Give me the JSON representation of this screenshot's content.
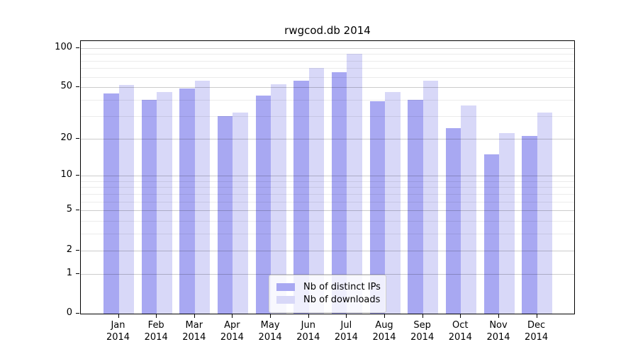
{
  "chart_data": {
    "type": "bar",
    "title": "rwgcod.db 2014",
    "xlabel": "",
    "ylabel": "",
    "scale": "symlog ln(1+x)",
    "ylim": [
      0,
      113
    ],
    "grid": "major and minor horizontal gridlines drawn over bars",
    "legend_position": "lower center inside plot",
    "categories": [
      {
        "month": "Jan",
        "year": "2014"
      },
      {
        "month": "Feb",
        "year": "2014"
      },
      {
        "month": "Mar",
        "year": "2014"
      },
      {
        "month": "Apr",
        "year": "2014"
      },
      {
        "month": "May",
        "year": "2014"
      },
      {
        "month": "Jun",
        "year": "2014"
      },
      {
        "month": "Jul",
        "year": "2014"
      },
      {
        "month": "Aug",
        "year": "2014"
      },
      {
        "month": "Sep",
        "year": "2014"
      },
      {
        "month": "Oct",
        "year": "2014"
      },
      {
        "month": "Nov",
        "year": "2014"
      },
      {
        "month": "Dec",
        "year": "2014"
      }
    ],
    "series": [
      {
        "name": "Nb of distinct IPs",
        "color": "#a8a8f2",
        "values": [
          45,
          40,
          49,
          30,
          43,
          56,
          65,
          39,
          40,
          24,
          15,
          21
        ]
      },
      {
        "name": "Nb of downloads",
        "color": "#d8d8f8",
        "values": [
          52,
          46,
          56,
          32,
          53,
          70,
          90,
          46,
          56,
          36,
          22,
          32
        ]
      }
    ],
    "y_major_ticks": [
      100,
      50,
      20,
      10,
      5,
      2,
      1,
      0
    ],
    "y_minor_ticks": [
      90,
      80,
      70,
      60,
      40,
      30,
      9,
      8,
      7,
      6,
      4,
      3
    ]
  },
  "colors": {
    "background": "#ffffff",
    "axis": "#000000",
    "grid_major": "rgba(0,0,0,0.20)",
    "grid_minor": "rgba(0,0,0,0.08)",
    "legend_border": "#cccccc"
  }
}
